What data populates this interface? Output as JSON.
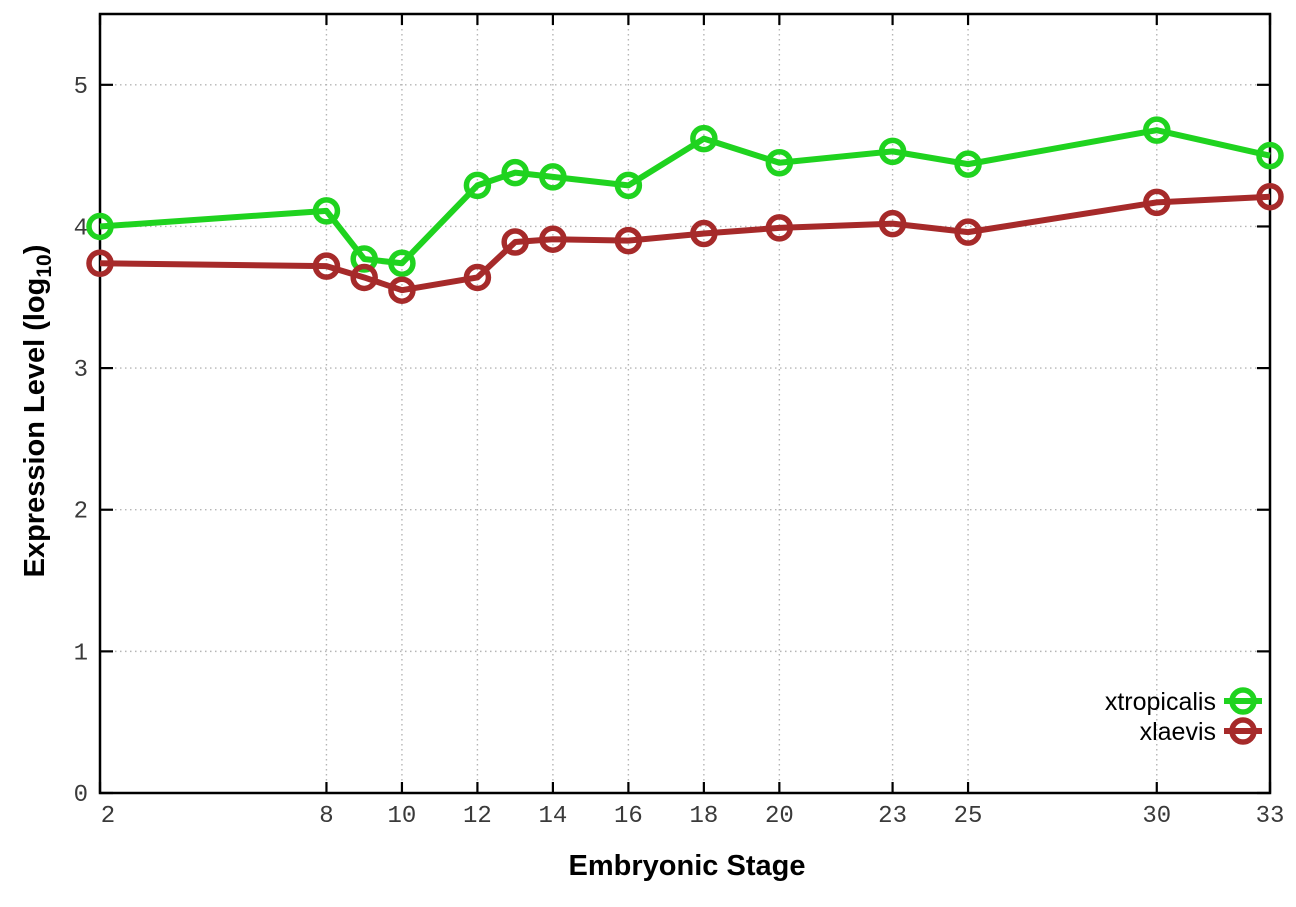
{
  "chart_data": {
    "type": "line",
    "title": "",
    "xlabel": "Embryonic Stage",
    "ylabel": "Expression Level (log10)",
    "ylabel_parts": {
      "main": "Expression Level (log",
      "sub": "10",
      "end": ")"
    },
    "xlim": [
      2,
      33
    ],
    "ylim": [
      0,
      5.5
    ],
    "x_ticks": [
      2,
      8,
      10,
      12,
      14,
      16,
      18,
      20,
      23,
      25,
      30,
      33
    ],
    "y_ticks": [
      0,
      1,
      2,
      3,
      4,
      5
    ],
    "grid": true,
    "legend_position": "inside-bottom-right",
    "marker": "open-circle",
    "series": [
      {
        "name": "xtropicalis",
        "color": "#1fd31f",
        "x": [
          2,
          8,
          9,
          10,
          12,
          13,
          14,
          16,
          18,
          20,
          23,
          25,
          30,
          33
        ],
        "y": [
          4.0,
          4.11,
          3.77,
          3.74,
          4.29,
          4.38,
          4.35,
          4.29,
          4.62,
          4.45,
          4.53,
          4.44,
          4.68,
          4.5
        ]
      },
      {
        "name": "xlaevis",
        "color": "#a62a2a",
        "x": [
          2,
          8,
          9,
          10,
          12,
          13,
          14,
          16,
          18,
          20,
          23,
          25,
          30,
          33
        ],
        "y": [
          3.74,
          3.72,
          3.64,
          3.55,
          3.64,
          3.89,
          3.91,
          3.9,
          3.95,
          3.99,
          4.02,
          3.96,
          4.17,
          4.21
        ]
      }
    ],
    "frame_color": "#000000",
    "grid_color": "#b5b5b5",
    "tick_label_color": "#3a3a3a"
  }
}
